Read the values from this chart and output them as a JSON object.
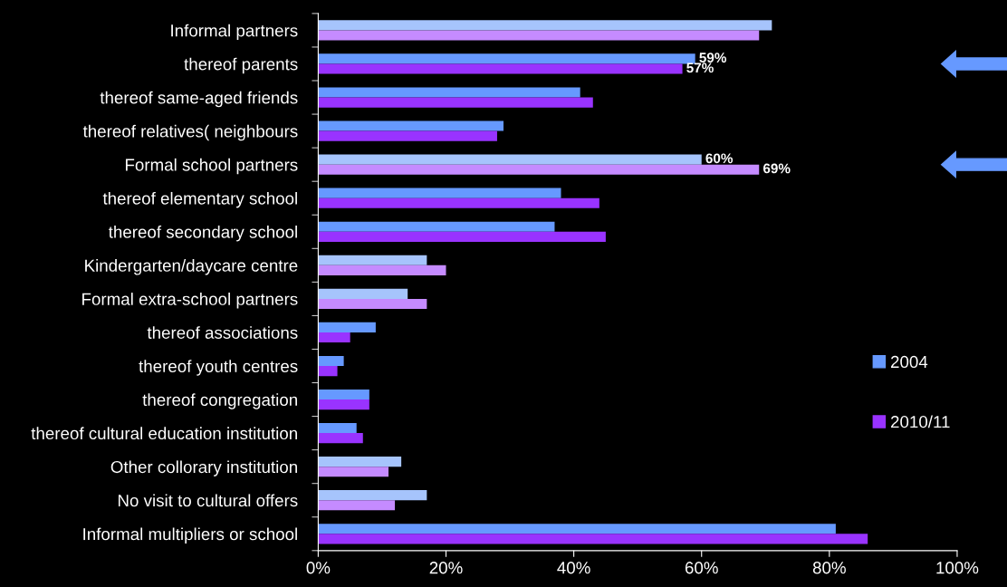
{
  "chart_data": {
    "type": "bar",
    "orientation": "horizontal",
    "categories": [
      "Informal partners",
      "thereof parents",
      "thereof same-aged friends",
      "thereof relatives( neighbours",
      "Formal school partners",
      "thereof elementary school",
      "thereof secondary school",
      "Kindergarten/daycare centre",
      "Formal extra-school partners",
      "thereof associations",
      "thereof youth centres",
      "thereof congregation",
      "thereof cultural education institution",
      "Other collorary institution",
      "No visit to cultural offers",
      "Informal multipliers or school"
    ],
    "series": [
      {
        "name": "2004",
        "color": "#6699ff",
        "colors": [
          "#a6c4fc",
          "#6699ff",
          "#6699ff",
          "#6699ff",
          "#a6c4fc",
          "#6699ff",
          "#6699ff",
          "#a6c4fc",
          "#a6c4fc",
          "#6699ff",
          "#6699ff",
          "#6699ff",
          "#6699ff",
          "#a6c4fc",
          "#a6c4fc",
          "#6699ff"
        ],
        "values": [
          71,
          59,
          41,
          29,
          60,
          38,
          37,
          17,
          14,
          9,
          4,
          8,
          6,
          13,
          17,
          81
        ],
        "value_labels": [
          null,
          "59%",
          null,
          null,
          "60%",
          null,
          null,
          null,
          null,
          null,
          null,
          null,
          null,
          null,
          null,
          null
        ]
      },
      {
        "name": "2010/11",
        "color": "#9933ff",
        "colors": [
          "#c58bff",
          "#9933ff",
          "#9933ff",
          "#9933ff",
          "#c58bff",
          "#9933ff",
          "#9933ff",
          "#c58bff",
          "#c58bff",
          "#9933ff",
          "#9933ff",
          "#9933ff",
          "#9933ff",
          "#c58bff",
          "#c58bff",
          "#9933ff"
        ],
        "values": [
          69,
          57,
          43,
          28,
          69,
          44,
          45,
          20,
          17,
          5,
          3,
          8,
          7,
          11,
          12,
          86
        ],
        "value_labels": [
          null,
          "57%",
          null,
          null,
          "69%",
          null,
          null,
          null,
          null,
          null,
          null,
          null,
          null,
          null,
          null,
          null
        ]
      }
    ],
    "xlim": [
      0,
      100
    ],
    "xticks": [
      {
        "value": 0,
        "label": "0%"
      },
      {
        "value": 20,
        "label": "20%"
      },
      {
        "value": 40,
        "label": "40%"
      },
      {
        "value": 60,
        "label": "60%"
      },
      {
        "value": 80,
        "label": "80%"
      },
      {
        "value": 100,
        "label": "100%"
      }
    ],
    "grid": false,
    "legend": "right"
  }
}
